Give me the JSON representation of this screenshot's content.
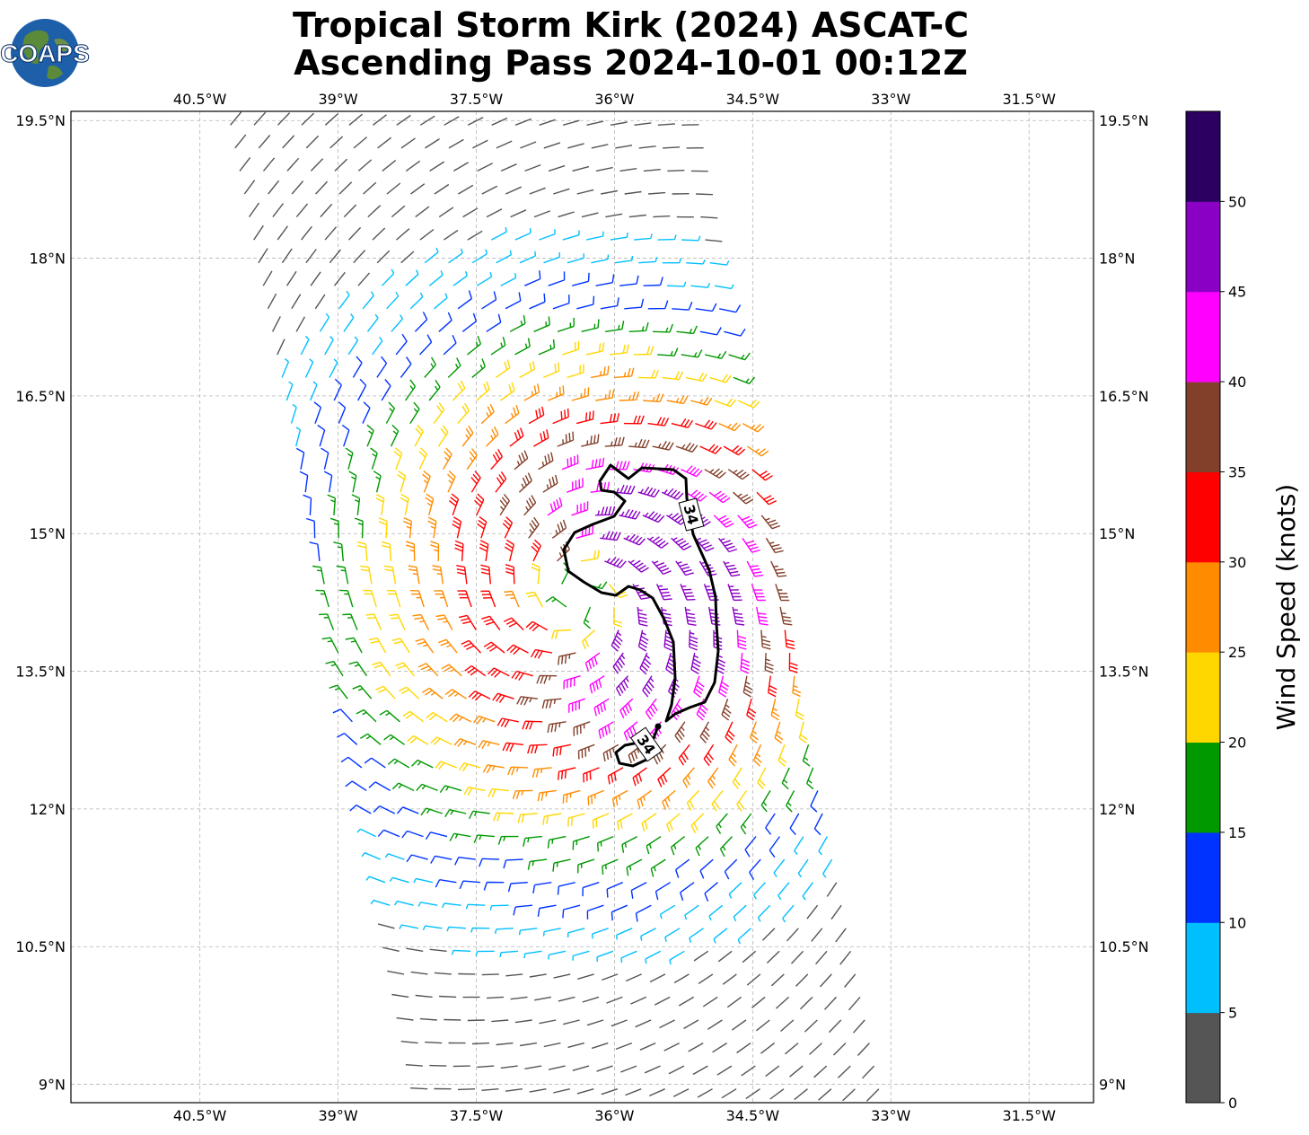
{
  "title": {
    "line1": "Tropical Storm Kirk (2024) ASCAT-C",
    "line2": "Ascending Pass 2024-10-01 00:12Z"
  },
  "logo": {
    "text": "COAPS"
  },
  "map": {
    "lon_ticks": [
      "40.5°W",
      "39°W",
      "37.5°W",
      "36°W",
      "34.5°W",
      "33°W",
      "31.5°W"
    ],
    "lat_ticks": [
      "19.5°N",
      "18°N",
      "16.5°N",
      "15°N",
      "13.5°N",
      "12°N",
      "10.5°N",
      "9°N"
    ],
    "lon_range": [
      -41.9,
      -30.8
    ],
    "lat_range": [
      8.8,
      19.6
    ],
    "contour_label": "34"
  },
  "wind": {
    "center_lon": -36.4,
    "center_lat": 14.3,
    "swath_lon_west_at_north": -40.2,
    "swath_lon_west_at_south": -38.0,
    "swath_width_deg": 4.9
  },
  "colorbar": {
    "label": "Wind Speed (knots)",
    "ticks": [
      "0",
      "5",
      "10",
      "15",
      "20",
      "25",
      "30",
      "35",
      "40",
      "45",
      "50"
    ],
    "colors": [
      "#555555",
      "#00bfff",
      "#0033ff",
      "#009900",
      "#ffd700",
      "#ff8c00",
      "#ff0000",
      "#823f2a",
      "#ff00ff",
      "#8a00c4",
      "#2b0060"
    ]
  }
}
